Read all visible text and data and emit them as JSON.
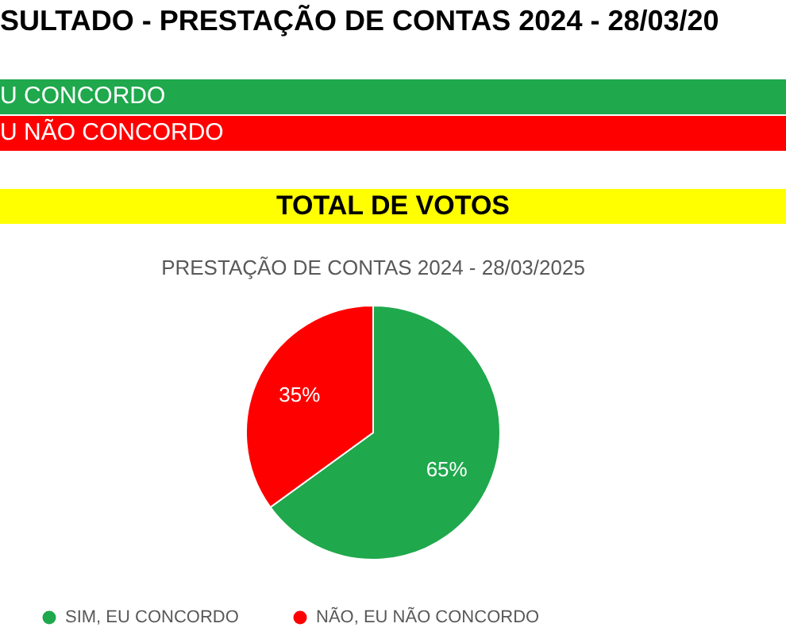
{
  "chart_data": {
    "type": "pie",
    "title": "PRESTAÇÃO DE CONTAS 2024 - 28/03/2025",
    "annotations": [
      "SULTADO - PRESTAÇÃO DE CONTAS 2024 - 28/03/20",
      "U CONCORDO",
      "U NÃO CONCORDO",
      "TOTAL DE VOTOS"
    ],
    "categories": [
      "SIM, EU CONCORDO",
      "NÃO, EU NÃO CONCORDO"
    ],
    "values": [
      65,
      35
    ],
    "colors": [
      "#1fa84c",
      "#ff0000"
    ],
    "value_labels": [
      "65%",
      "35%"
    ],
    "legend": "bottom"
  }
}
